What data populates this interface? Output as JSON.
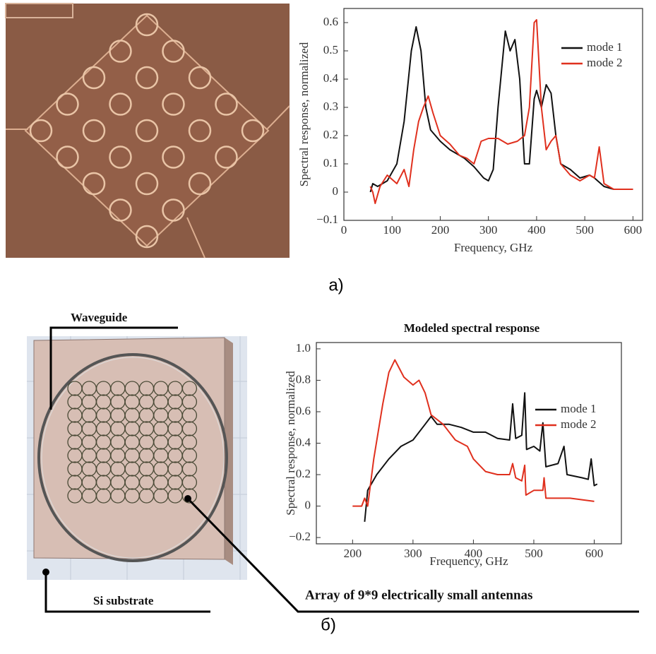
{
  "chart_data": [
    {
      "type": "line",
      "panel_label": "a)",
      "x_label": "Frequency, GHz",
      "y_label": "Spectral response, normalized",
      "xlim": [
        0,
        620
      ],
      "ylim": [
        -0.1,
        0.65
      ],
      "xticks": [
        0,
        100,
        200,
        300,
        400,
        500,
        600
      ],
      "yticks": [
        {
          "value": -0.1,
          "label": "−0.1"
        },
        0,
        0.1,
        0.2,
        0.3,
        0.4,
        0.5,
        0.6
      ],
      "legend": "upper right",
      "series": [
        {
          "name": "mode 1",
          "color": "#111111",
          "x": [
            55,
            60,
            70,
            90,
            110,
            125,
            140,
            150,
            160,
            170,
            180,
            200,
            220,
            250,
            270,
            290,
            300,
            310,
            320,
            335,
            345,
            355,
            365,
            375,
            385,
            395,
            400,
            410,
            420,
            430,
            440,
            450,
            470,
            490,
            510,
            520,
            540,
            560,
            600
          ],
          "values": [
            0.0,
            0.03,
            0.02,
            0.04,
            0.1,
            0.25,
            0.5,
            0.585,
            0.5,
            0.3,
            0.22,
            0.18,
            0.15,
            0.12,
            0.09,
            0.05,
            0.04,
            0.08,
            0.3,
            0.57,
            0.5,
            0.54,
            0.4,
            0.1,
            0.1,
            0.33,
            0.36,
            0.3,
            0.38,
            0.35,
            0.2,
            0.1,
            0.08,
            0.05,
            0.06,
            0.05,
            0.02,
            0.01,
            0.01
          ]
        },
        {
          "name": "mode 2",
          "color": "#e0301e",
          "x": [
            55,
            60,
            65,
            75,
            90,
            110,
            125,
            135,
            145,
            155,
            165,
            175,
            185,
            200,
            220,
            240,
            255,
            270,
            285,
            300,
            320,
            340,
            360,
            375,
            385,
            395,
            400,
            410,
            420,
            430,
            440,
            450,
            470,
            490,
            510,
            520,
            530,
            540,
            560,
            600
          ],
          "values": [
            0.02,
            0.0,
            -0.04,
            0.02,
            0.06,
            0.03,
            0.08,
            0.02,
            0.15,
            0.25,
            0.3,
            0.34,
            0.28,
            0.2,
            0.17,
            0.13,
            0.12,
            0.1,
            0.18,
            0.19,
            0.19,
            0.17,
            0.18,
            0.2,
            0.3,
            0.6,
            0.61,
            0.3,
            0.15,
            0.18,
            0.2,
            0.1,
            0.06,
            0.04,
            0.06,
            0.05,
            0.16,
            0.03,
            0.01,
            0.01
          ]
        }
      ]
    },
    {
      "type": "line",
      "panel_label": "б)",
      "title": "Modeled spectral response",
      "x_label": "Frequency, GHz",
      "y_label": "Spectral response, normalized",
      "annotations": [
        "Waveguide",
        "Si substrate",
        "Array of 9*9 electrically small antennas"
      ],
      "xlim": [
        140,
        645
      ],
      "ylim": [
        -0.24,
        1.04
      ],
      "xticks": [
        200,
        300,
        400,
        500,
        600
      ],
      "yticks": [
        {
          "value": -0.2,
          "label": "−0.2"
        },
        0,
        0.2,
        0.4,
        0.6,
        0.8,
        {
          "value": 1,
          "label": "1.0"
        }
      ],
      "legend": "center right",
      "series": [
        {
          "name": "mode 1",
          "color": "#111111",
          "x": [
            220,
            225,
            240,
            260,
            280,
            300,
            320,
            330,
            340,
            360,
            380,
            400,
            420,
            440,
            460,
            465,
            470,
            480,
            485,
            488,
            500,
            510,
            515,
            520,
            540,
            550,
            555,
            580,
            590,
            595,
            600,
            605
          ],
          "values": [
            -0.1,
            0.1,
            0.2,
            0.3,
            0.38,
            0.42,
            0.52,
            0.57,
            0.52,
            0.52,
            0.5,
            0.47,
            0.47,
            0.43,
            0.42,
            0.65,
            0.43,
            0.45,
            0.72,
            0.36,
            0.38,
            0.35,
            0.53,
            0.25,
            0.27,
            0.38,
            0.2,
            0.18,
            0.17,
            0.3,
            0.13,
            0.14
          ]
        },
        {
          "name": "mode 2",
          "color": "#e0301e",
          "x": [
            200,
            215,
            220,
            225,
            235,
            250,
            260,
            270,
            285,
            300,
            310,
            320,
            330,
            350,
            370,
            390,
            400,
            420,
            440,
            460,
            465,
            470,
            480,
            485,
            487,
            500,
            515,
            517,
            520,
            560,
            600
          ],
          "values": [
            0.0,
            0.0,
            0.05,
            0.0,
            0.3,
            0.65,
            0.85,
            0.93,
            0.82,
            0.77,
            0.8,
            0.72,
            0.58,
            0.52,
            0.42,
            0.38,
            0.3,
            0.22,
            0.2,
            0.2,
            0.27,
            0.18,
            0.16,
            0.26,
            0.07,
            0.1,
            0.1,
            0.18,
            0.05,
            0.05,
            0.03
          ]
        }
      ]
    }
  ]
}
